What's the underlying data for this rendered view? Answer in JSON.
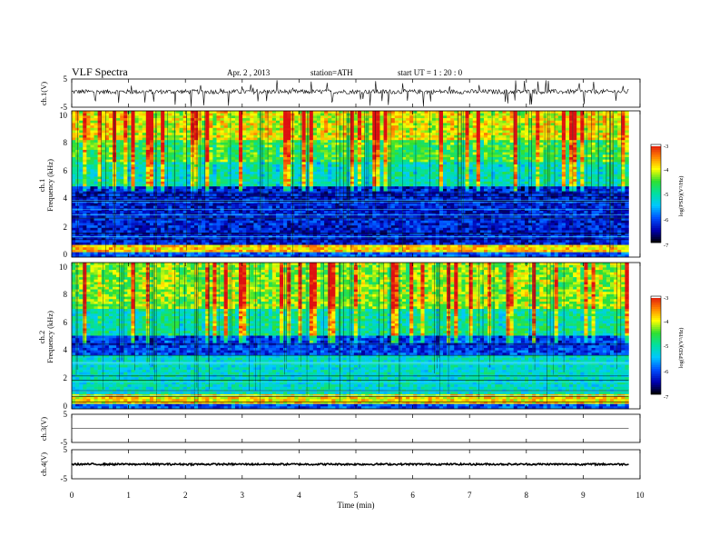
{
  "header": {
    "title": "VLF  Spectra",
    "date": "Apr. 2  , 2013",
    "station": "station=ATH",
    "start_ut": "start  UT  =   1  : 20 : 0"
  },
  "colors": {
    "spectrogram_scale": [
      "#000000",
      "#0000b0",
      "#0050ff",
      "#00c8ff",
      "#00e0a0",
      "#30e030",
      "#ffff00",
      "#ff8000",
      "#dd1010",
      "#ffffff"
    ],
    "waveform": "#000000",
    "axis": "#000000"
  },
  "chart_data": [
    {
      "type": "line",
      "panel": "ch1-waveform",
      "ylabel": "ch.1(V)",
      "yticks": [
        "5",
        "-5"
      ],
      "ylim": [
        -5,
        5
      ],
      "xlim": [
        0,
        10
      ],
      "series": [
        {
          "values_summary": {
            "mean": 0.5,
            "min_spike": -4.8,
            "max_spike": 4.6,
            "noise_amplitude": 0.8
          }
        }
      ]
    },
    {
      "type": "heatmap",
      "panel": "ch1-spectrogram",
      "ylabel": "ch.1\nFrequency  (kHz)",
      "yticks": [
        "0",
        "2",
        "4",
        "6",
        "8",
        "10"
      ],
      "ylim": [
        0,
        10
      ],
      "xlim": [
        0,
        10
      ],
      "x_end_min": 9.8,
      "z_scale": {
        "label": "log(PSD)(V²/Hz)",
        "ticks": [
          "-7",
          "-6",
          "-5",
          "-4",
          "-3"
        ],
        "range": [
          -7,
          -3
        ]
      },
      "band_profile": [
        {
          "freq_khz": [
            0.0,
            0.3
          ],
          "log_psd": -6.0
        },
        {
          "freq_khz": [
            0.3,
            0.9
          ],
          "log_psd": -3.8
        },
        {
          "freq_khz": [
            0.9,
            4.8
          ],
          "log_psd": -6.3
        },
        {
          "freq_khz": [
            4.8,
            6.5
          ],
          "log_psd": -5.1
        },
        {
          "freq_khz": [
            6.5,
            8.0
          ],
          "log_psd": -4.6
        },
        {
          "freq_khz": [
            8.0,
            10.0
          ],
          "log_psd": -4.0
        }
      ]
    },
    {
      "type": "heatmap",
      "panel": "ch2-spectrogram",
      "ylabel": "ch.2\nFrequency  (kHz)",
      "yticks": [
        "0",
        "2",
        "4",
        "6",
        "8",
        "10"
      ],
      "ylim": [
        0,
        10
      ],
      "xlim": [
        0,
        10
      ],
      "x_end_min": 9.8,
      "z_scale": {
        "label": "log(PSD)(V²/Hz)",
        "ticks": [
          "-7",
          "-6",
          "-5",
          "-4",
          "-3"
        ],
        "range": [
          -7,
          -3
        ]
      },
      "band_profile": [
        {
          "freq_khz": [
            0.0,
            0.4
          ],
          "log_psd": -6.0
        },
        {
          "freq_khz": [
            0.4,
            1.0
          ],
          "log_psd": -3.9
        },
        {
          "freq_khz": [
            1.0,
            3.6
          ],
          "log_psd": -5.2
        },
        {
          "freq_khz": [
            3.6,
            5.0
          ],
          "log_psd": -6.1
        },
        {
          "freq_khz": [
            5.0,
            6.8
          ],
          "log_psd": -5.0
        },
        {
          "freq_khz": [
            6.8,
            10.0
          ],
          "log_psd": -4.3
        }
      ]
    },
    {
      "type": "line",
      "panel": "ch3-waveform",
      "ylabel": "ch.3(V)",
      "yticks": [
        "5",
        "-5"
      ],
      "ylim": [
        -5,
        5
      ],
      "xlim": [
        0,
        10
      ],
      "series": [
        {
          "values_summary": {
            "mean": 0.0,
            "noise_amplitude": 0.0
          }
        }
      ]
    },
    {
      "type": "line",
      "panel": "ch4-waveform",
      "ylabel": "ch.4(V)",
      "yticks": [
        "5",
        "-5"
      ],
      "ylim": [
        -5,
        5
      ],
      "xlim": [
        0,
        10
      ],
      "series": [
        {
          "values_summary": {
            "mean": 0.0,
            "noise_amplitude": 0.3
          }
        }
      ]
    }
  ],
  "x_axis": {
    "label": "Time  (min)",
    "ticks": [
      "0",
      "1",
      "2",
      "3",
      "4",
      "5",
      "6",
      "7",
      "8",
      "9",
      "10"
    ],
    "range": [
      0,
      10
    ]
  }
}
